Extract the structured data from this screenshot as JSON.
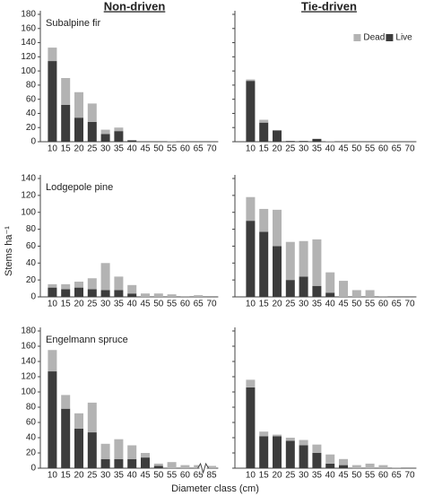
{
  "chart_data": [
    {
      "type": "bar",
      "title": "Non-driven",
      "subtitle": "Subalpine fir",
      "categories": [
        10,
        15,
        20,
        25,
        30,
        35,
        40,
        45,
        50,
        55,
        60,
        65,
        70
      ],
      "series": [
        {
          "color": "#b3b3b3",
          "values": [
            19,
            38,
            36,
            26,
            6,
            5,
            0,
            0,
            0,
            1,
            0,
            0,
            0
          ]
        },
        {
          "color": "#3c3c3c",
          "values": [
            114,
            52,
            34,
            28,
            11,
            15,
            2,
            0,
            0,
            0,
            0,
            0,
            0
          ]
        }
      ],
      "ylim": [
        0,
        180
      ],
      "yticks": [
        0,
        20,
        40,
        60,
        80,
        100,
        120,
        140,
        160,
        180
      ],
      "stacked": true
    },
    {
      "type": "bar",
      "title": "Tie-driven",
      "categories": [
        10,
        15,
        20,
        25,
        30,
        35,
        40,
        45,
        50,
        55,
        60,
        65,
        70
      ],
      "series": [
        {
          "name": "Dead",
          "color": "#b3b3b3",
          "values": [
            2,
            4,
            0,
            0,
            0,
            0,
            1,
            0,
            0,
            0,
            0,
            0,
            0
          ]
        },
        {
          "name": "Live",
          "color": "#3c3c3c",
          "values": [
            86,
            27,
            16,
            1,
            1,
            4,
            0,
            0,
            0,
            0,
            0,
            0,
            0
          ]
        }
      ],
      "ylim": [
        0,
        180
      ],
      "yticks": [
        0,
        20,
        40,
        60,
        80,
        100,
        120,
        140,
        160,
        180
      ],
      "stacked": true,
      "legend": "upper right"
    },
    {
      "type": "bar",
      "subtitle": "Lodgepole pine",
      "ylabel": "Stems ha⁻¹",
      "categories": [
        10,
        15,
        20,
        25,
        30,
        35,
        40,
        45,
        50,
        55,
        60,
        65,
        70
      ],
      "series": [
        {
          "color": "#b3b3b3",
          "values": [
            4,
            6,
            7,
            13,
            32,
            16,
            10,
            4,
            4,
            3,
            1,
            2,
            0
          ]
        },
        {
          "color": "#3c3c3c",
          "values": [
            11,
            9,
            11,
            9,
            8,
            8,
            4,
            0,
            0,
            0,
            0,
            0,
            0
          ]
        }
      ],
      "ylim": [
        0,
        140
      ],
      "yticks": [
        0,
        20,
        40,
        60,
        80,
        100,
        120,
        140
      ],
      "stacked": true
    },
    {
      "type": "bar",
      "categories": [
        10,
        15,
        20,
        25,
        30,
        35,
        40,
        45,
        50,
        55,
        60,
        65,
        70
      ],
      "series": [
        {
          "color": "#b3b3b3",
          "values": [
            28,
            27,
            43,
            45,
            42,
            55,
            24,
            19,
            8,
            8,
            1,
            0,
            0
          ]
        },
        {
          "color": "#3c3c3c",
          "values": [
            90,
            77,
            60,
            20,
            24,
            13,
            5,
            0,
            0,
            0,
            0,
            0,
            0
          ]
        }
      ],
      "ylim": [
        0,
        140
      ],
      "yticks": [
        0,
        20,
        40,
        60,
        80,
        100,
        120,
        140
      ],
      "stacked": true
    },
    {
      "type": "bar",
      "subtitle": "Engelmann spruce",
      "xlabel": "Diameter class (cm)",
      "categories": [
        10,
        15,
        20,
        25,
        30,
        35,
        40,
        45,
        50,
        55,
        60,
        65,
        85
      ],
      "series": [
        {
          "color": "#b3b3b3",
          "values": [
            28,
            18,
            20,
            39,
            20,
            26,
            18,
            6,
            3,
            8,
            4,
            4,
            3
          ]
        },
        {
          "color": "#3c3c3c",
          "values": [
            127,
            78,
            52,
            47,
            12,
            12,
            12,
            14,
            3,
            0,
            0,
            0,
            0
          ]
        }
      ],
      "ylim": [
        0,
        180
      ],
      "yticks": [
        0,
        20,
        40,
        60,
        80,
        100,
        120,
        140,
        160,
        180
      ],
      "stacked": true
    },
    {
      "type": "bar",
      "categories": [
        10,
        15,
        20,
        25,
        30,
        35,
        40,
        45,
        50,
        55,
        60,
        65,
        70
      ],
      "series": [
        {
          "color": "#b3b3b3",
          "values": [
            10,
            6,
            2,
            4,
            7,
            11,
            12,
            8,
            4,
            6,
            4,
            1,
            0
          ]
        },
        {
          "color": "#3c3c3c",
          "values": [
            106,
            42,
            42,
            36,
            30,
            20,
            6,
            4,
            0,
            0,
            0,
            0,
            0
          ]
        }
      ],
      "ylim": [
        0,
        180
      ],
      "yticks": [
        0,
        20,
        40,
        60,
        80,
        100,
        120,
        140,
        160,
        180
      ],
      "stacked": true
    }
  ]
}
